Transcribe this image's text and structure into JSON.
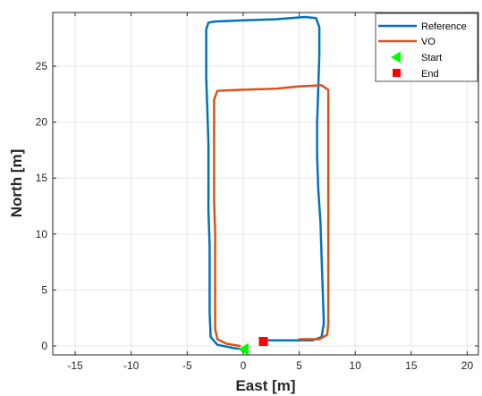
{
  "chart_data": {
    "type": "line",
    "title": "",
    "xlabel": "East [m]",
    "ylabel": "North [m]",
    "xlim": [
      -17,
      21
    ],
    "ylim": [
      -0.8,
      29.8
    ],
    "xticks": [
      -15,
      -10,
      -5,
      0,
      5,
      10,
      15,
      20
    ],
    "yticks": [
      0,
      5,
      10,
      15,
      20,
      25
    ],
    "grid": true,
    "legend_position": "top-right",
    "series": [
      {
        "name": "Reference",
        "color": "#0072BD",
        "points": [
          [
            0.0,
            -0.3
          ],
          [
            -0.8,
            -0.2
          ],
          [
            -2.3,
            0.1
          ],
          [
            -2.9,
            0.8
          ],
          [
            -3.0,
            3.0
          ],
          [
            -3.0,
            6.0
          ],
          [
            -3.0,
            9.0
          ],
          [
            -3.1,
            12.0
          ],
          [
            -3.1,
            15.0
          ],
          [
            -3.1,
            18.0
          ],
          [
            -3.2,
            21.0
          ],
          [
            -3.3,
            24.0
          ],
          [
            -3.3,
            26.5
          ],
          [
            -3.3,
            28.3
          ],
          [
            -3.1,
            28.9
          ],
          [
            -2.5,
            29.0
          ],
          [
            0.0,
            29.1
          ],
          [
            3.0,
            29.2
          ],
          [
            5.5,
            29.4
          ],
          [
            6.5,
            29.3
          ],
          [
            6.8,
            28.5
          ],
          [
            6.8,
            26.0
          ],
          [
            6.7,
            23.0
          ],
          [
            6.6,
            20.0
          ],
          [
            6.6,
            17.0
          ],
          [
            6.7,
            14.0
          ],
          [
            6.9,
            11.0
          ],
          [
            7.0,
            8.0
          ],
          [
            7.1,
            5.0
          ],
          [
            7.2,
            2.0
          ],
          [
            7.0,
            0.8
          ],
          [
            6.2,
            0.5
          ],
          [
            4.5,
            0.5
          ],
          [
            2.0,
            0.5
          ]
        ]
      },
      {
        "name": "VO",
        "color": "#D95319",
        "points": [
          [
            -0.3,
            0.0
          ],
          [
            -1.5,
            0.2
          ],
          [
            -2.3,
            0.6
          ],
          [
            -2.5,
            1.5
          ],
          [
            -2.5,
            4.0
          ],
          [
            -2.5,
            7.0
          ],
          [
            -2.5,
            10.0
          ],
          [
            -2.6,
            13.0
          ],
          [
            -2.6,
            16.0
          ],
          [
            -2.6,
            19.0
          ],
          [
            -2.6,
            22.0
          ],
          [
            -2.3,
            22.8
          ],
          [
            0.0,
            22.9
          ],
          [
            3.0,
            23.0
          ],
          [
            5.0,
            23.2
          ],
          [
            7.0,
            23.3
          ],
          [
            7.6,
            22.9
          ],
          [
            7.6,
            20.0
          ],
          [
            7.6,
            17.0
          ],
          [
            7.6,
            14.0
          ],
          [
            7.6,
            11.0
          ],
          [
            7.6,
            8.0
          ],
          [
            7.6,
            5.0
          ],
          [
            7.6,
            2.0
          ],
          [
            7.5,
            1.0
          ],
          [
            6.8,
            0.6
          ],
          [
            5.0,
            0.6
          ]
        ]
      }
    ],
    "markers": [
      {
        "name": "Start",
        "shape": "triangle-left",
        "color": "#00FF00",
        "x": 0.0,
        "y": -0.3
      },
      {
        "name": "End",
        "shape": "square",
        "color": "#FF0000",
        "x": 1.8,
        "y": 0.4
      }
    ]
  }
}
